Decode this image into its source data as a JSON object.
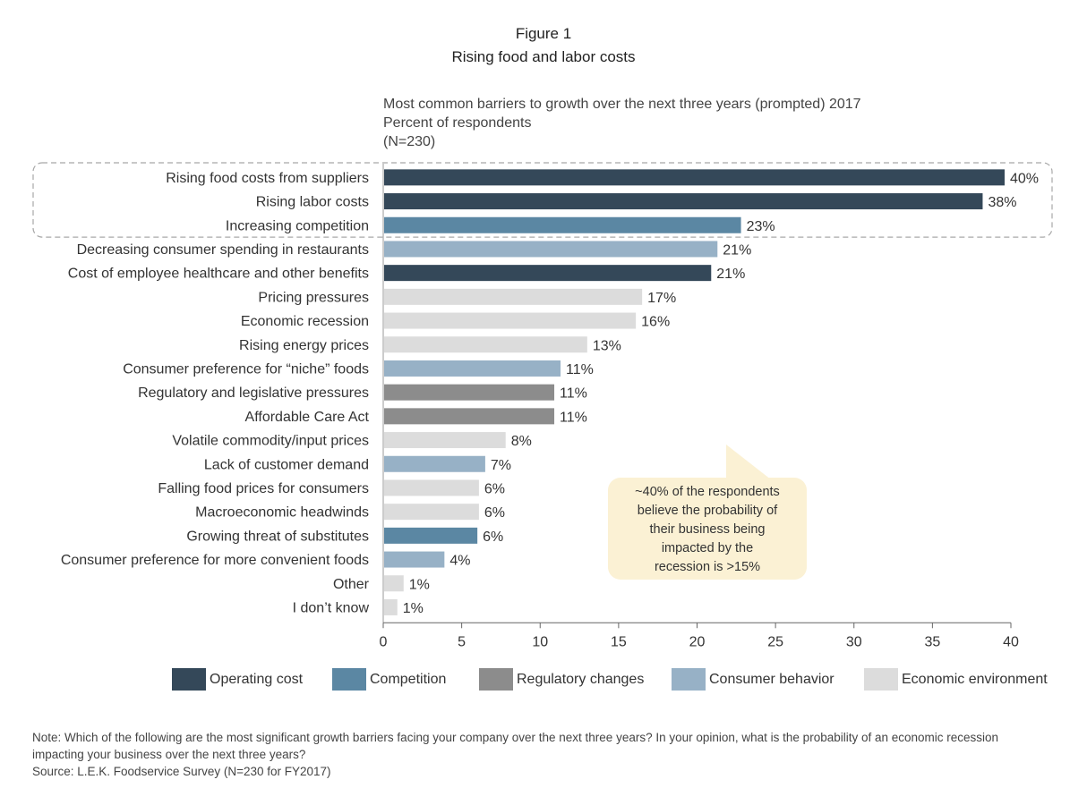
{
  "figure_label": "Figure 1",
  "figure_title": "Rising food and labor costs",
  "subtitle_lines": [
    "Most common barriers to growth over the next three years (prompted) 2017",
    "Percent of respondents",
    "(N=230)"
  ],
  "colors": {
    "Operating cost": "#344859",
    "Competition": "#5b87a3",
    "Regulatory changes": "#8c8c8c",
    "Consumer behavior": "#97b1c6",
    "Economic environment": "#dcdcdc",
    "callout_bg": "#fbf1d4"
  },
  "chart_data": {
    "type": "bar",
    "orientation": "horizontal",
    "categories": [
      "Rising food costs from suppliers",
      "Rising labor costs",
      "Increasing competition",
      "Decreasing consumer spending in restaurants",
      "Cost of employee healthcare and other benefits",
      "Pricing pressures",
      "Economic recession",
      "Rising energy prices",
      "Consumer preference for “niche” foods",
      "Regulatory and legislative pressures",
      "Affordable Care Act",
      "Volatile commodity/input prices",
      "Lack of customer demand",
      "Falling food prices for consumers",
      "Macroeconomic headwinds",
      "Growing threat of substitutes",
      "Consumer preference for more convenient foods",
      "Other",
      "I don’t know"
    ],
    "values": [
      39.6,
      38.2,
      22.8,
      21.3,
      20.9,
      16.5,
      16.1,
      13.0,
      11.3,
      10.9,
      10.9,
      7.8,
      6.5,
      6.1,
      6.1,
      6.0,
      3.9,
      1.3,
      0.9
    ],
    "value_labels": [
      "40%",
      "38%",
      "23%",
      "21%",
      "21%",
      "17%",
      "16%",
      "13%",
      "11%",
      "11%",
      "11%",
      "8%",
      "7%",
      "6%",
      "6%",
      "6%",
      "4%",
      "1%",
      "1%"
    ],
    "groups": [
      "Operating cost",
      "Operating cost",
      "Competition",
      "Consumer behavior",
      "Operating cost",
      "Economic environment",
      "Economic environment",
      "Economic environment",
      "Consumer behavior",
      "Regulatory changes",
      "Regulatory changes",
      "Economic environment",
      "Consumer behavior",
      "Economic environment",
      "Economic environment",
      "Competition",
      "Consumer behavior",
      "Economic environment",
      "Economic environment"
    ],
    "xlim": [
      0,
      40
    ],
    "xticks": [
      0,
      5,
      10,
      15,
      20,
      25,
      30,
      35,
      40
    ],
    "highlighted_rows": [
      0,
      1,
      2
    ],
    "legend": [
      "Operating cost",
      "Competition",
      "Regulatory changes",
      "Consumer behavior",
      "Economic environment"
    ],
    "legend_position": "bottom"
  },
  "callout_lines": [
    "~40% of the respondents",
    "believe the probability of",
    "their business being",
    "impacted by the",
    "recession is >15%"
  ],
  "note": "Note: Which of the following are the most significant growth barriers facing your company over the next three years?  In your opinion, what is the probability of an economic recession impacting your business over the next three years?",
  "source": "Source: L.E.K. Foodservice Survey (N=230 for FY2017)"
}
